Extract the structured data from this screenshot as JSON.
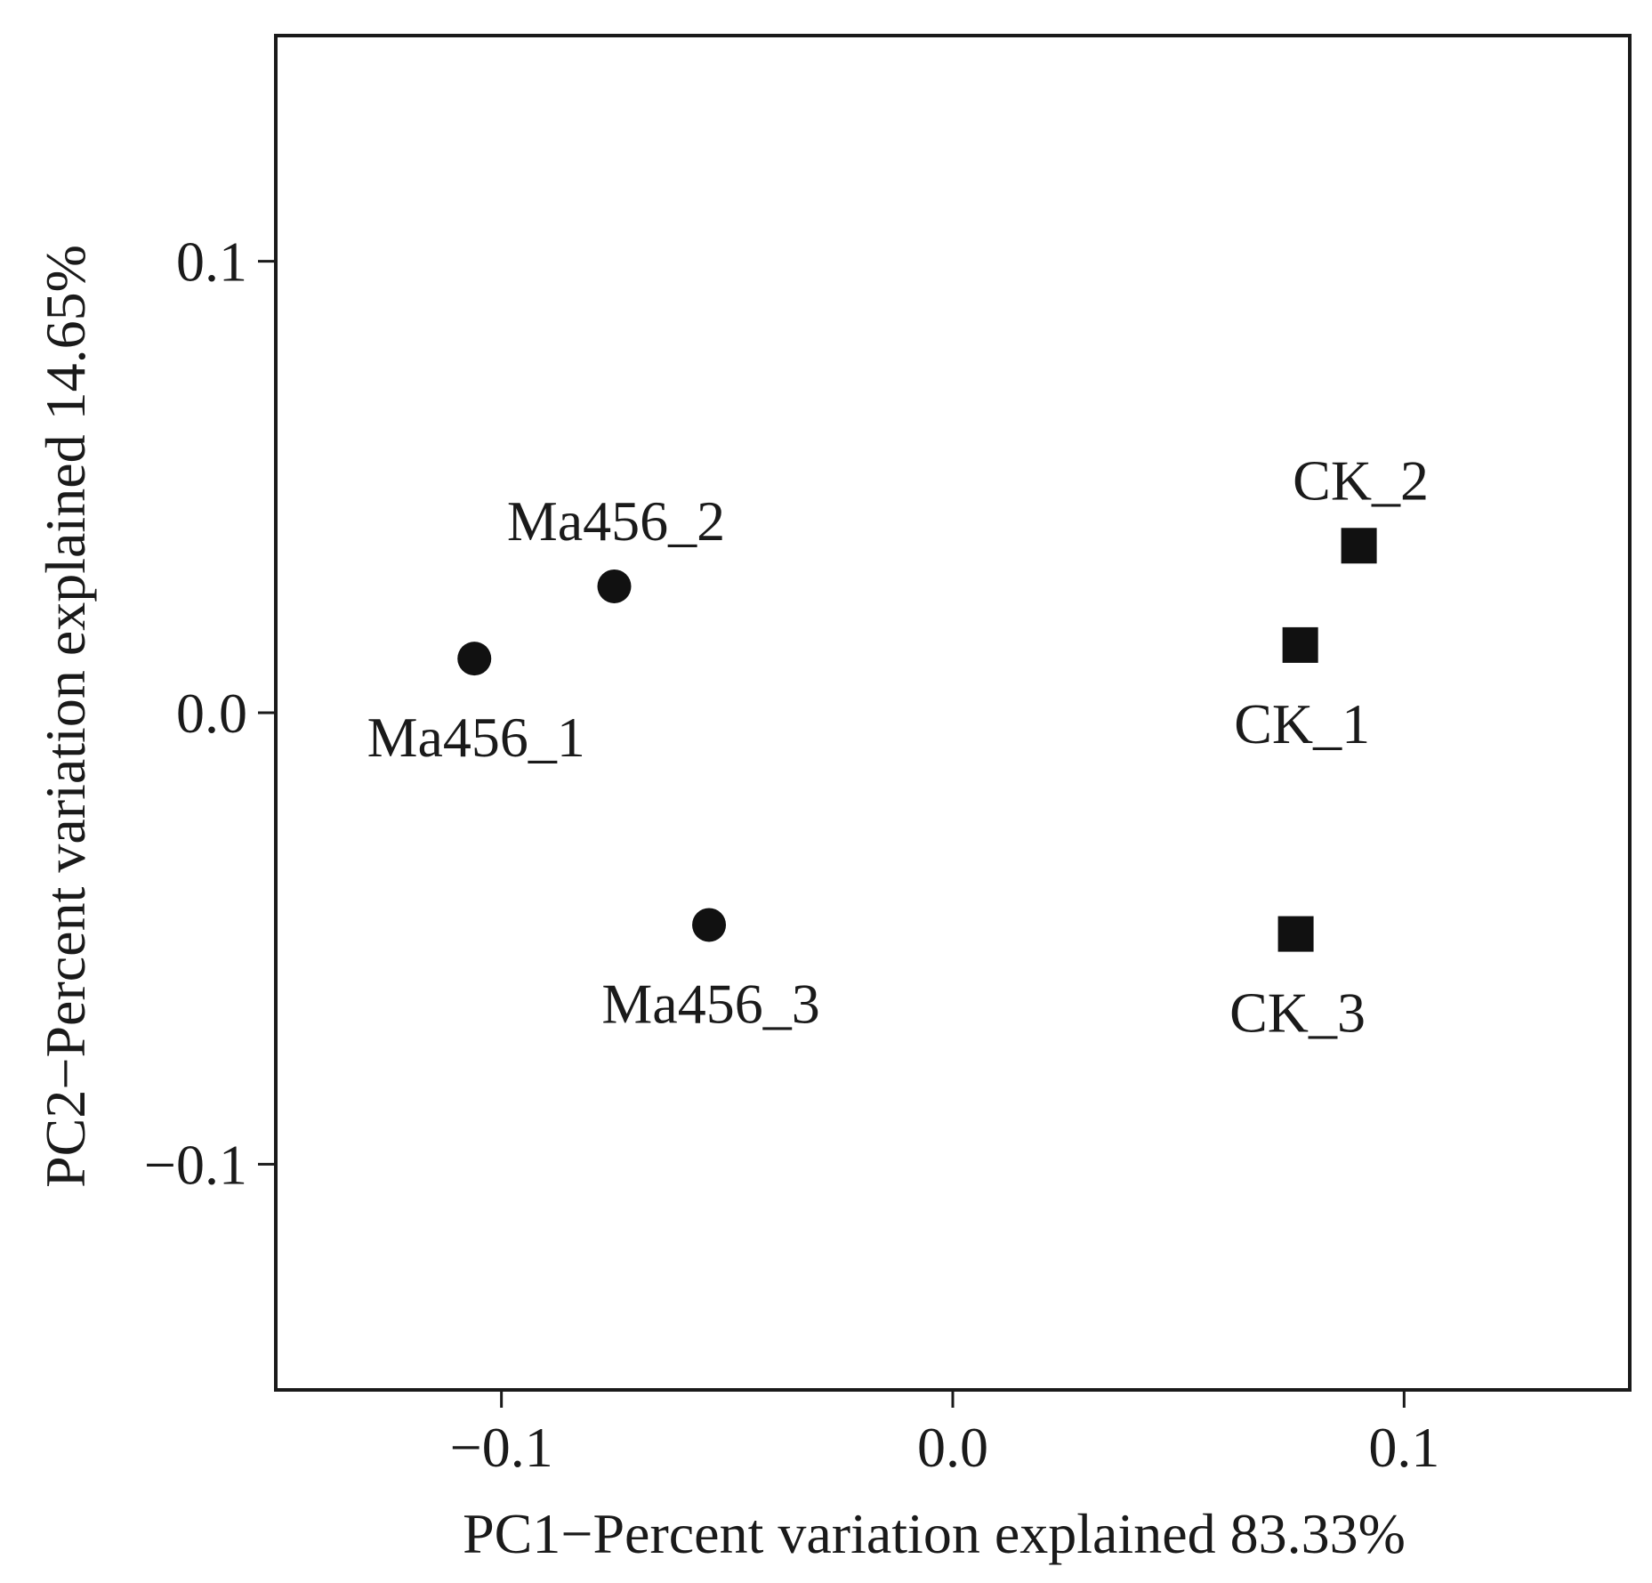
{
  "chart_data": {
    "type": "scatter",
    "title": "",
    "xlabel": "PC1−Percent variation explained 83.33%",
    "ylabel": "PC2−Percent variation explained  14.65%",
    "xlim": [
      -0.15,
      0.15
    ],
    "ylim": [
      -0.15,
      0.15
    ],
    "xticks": [
      -0.1,
      0.0,
      0.1
    ],
    "xtick_labels": [
      "−0.1",
      "0.0",
      "0.1"
    ],
    "yticks": [
      -0.1,
      0.0,
      0.1
    ],
    "ytick_labels": [
      "−0.1",
      "0.0",
      "0.1"
    ],
    "grid": false,
    "series": [
      {
        "name": "Ma456",
        "marker": "circle",
        "color": "#111111",
        "points": [
          {
            "label": "Ma456_1",
            "x": -0.106,
            "y": 0.012,
            "label_pos": "below"
          },
          {
            "label": "Ma456_2",
            "x": -0.075,
            "y": 0.028,
            "label_pos": "above"
          },
          {
            "label": "Ma456_3",
            "x": -0.054,
            "y": -0.047,
            "label_pos": "below"
          }
        ]
      },
      {
        "name": "CK",
        "marker": "square",
        "color": "#111111",
        "points": [
          {
            "label": "CK_1",
            "x": 0.077,
            "y": 0.015,
            "label_pos": "below"
          },
          {
            "label": "CK_2",
            "x": 0.09,
            "y": 0.037,
            "label_pos": "above"
          },
          {
            "label": "CK_3",
            "x": 0.076,
            "y": -0.049,
            "label_pos": "below"
          }
        ]
      }
    ]
  }
}
